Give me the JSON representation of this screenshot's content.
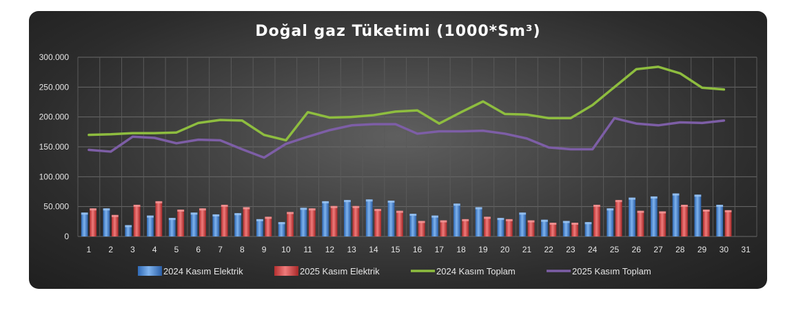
{
  "chart_data": {
    "type": "bar",
    "title": "Doğal gaz Tüketimi (1000*Sm³)",
    "xlabel": "",
    "ylabel": "",
    "ylim": [
      0,
      300000
    ],
    "y_ticks": [
      "0",
      "50.000",
      "100.000",
      "150.000",
      "200.000",
      "250.000",
      "300.000"
    ],
    "categories": [
      "1",
      "2",
      "3",
      "4",
      "5",
      "6",
      "7",
      "8",
      "9",
      "10",
      "11",
      "12",
      "13",
      "14",
      "15",
      "16",
      "17",
      "18",
      "19",
      "20",
      "21",
      "22",
      "23",
      "24",
      "25",
      "26",
      "27",
      "28",
      "29",
      "30",
      "31"
    ],
    "grid": true,
    "legend_position": "bottom",
    "series": [
      {
        "name": "2024 Kasım Elektrik",
        "type": "bar",
        "color": "#4f8fd6",
        "values": [
          40000,
          47000,
          19000,
          35000,
          31000,
          40000,
          37000,
          39000,
          29000,
          24000,
          48000,
          59000,
          61000,
          62000,
          60000,
          38000,
          35000,
          55000,
          49000,
          31000,
          40000,
          28000,
          26000,
          24000,
          47000,
          65000,
          67000,
          72000,
          70000,
          53000,
          null
        ]
      },
      {
        "name": "2025 Kasım Elektrik",
        "type": "bar",
        "color": "#d94b4b",
        "values": [
          47000,
          36000,
          53000,
          59000,
          45000,
          47000,
          53000,
          49000,
          33000,
          41000,
          47000,
          51000,
          51000,
          46000,
          43000,
          26000,
          27000,
          29000,
          33000,
          29000,
          27000,
          23000,
          23000,
          53000,
          61000,
          43000,
          42000,
          53000,
          45000,
          44000,
          null
        ]
      },
      {
        "name": "2024 Kasım Toplam",
        "type": "line",
        "color": "#8ebd3f",
        "values": [
          170000,
          171000,
          173000,
          173000,
          174000,
          190000,
          195000,
          194000,
          170000,
          161000,
          208000,
          199000,
          200000,
          203000,
          209000,
          211000,
          189000,
          208000,
          226000,
          205000,
          204000,
          198000,
          198000,
          220000,
          250000,
          280000,
          284000,
          273000,
          249000,
          246000,
          null
        ]
      },
      {
        "name": "2025 Kasım Toplam",
        "type": "line",
        "color": "#7d5ea6",
        "values": [
          145000,
          142000,
          167000,
          165000,
          156000,
          162000,
          161000,
          146000,
          132000,
          155000,
          167000,
          178000,
          186000,
          188000,
          188000,
          172000,
          176000,
          176000,
          177000,
          172000,
          164000,
          149000,
          146000,
          146000,
          198000,
          189000,
          186000,
          191000,
          190000,
          194000,
          null
        ]
      }
    ]
  }
}
